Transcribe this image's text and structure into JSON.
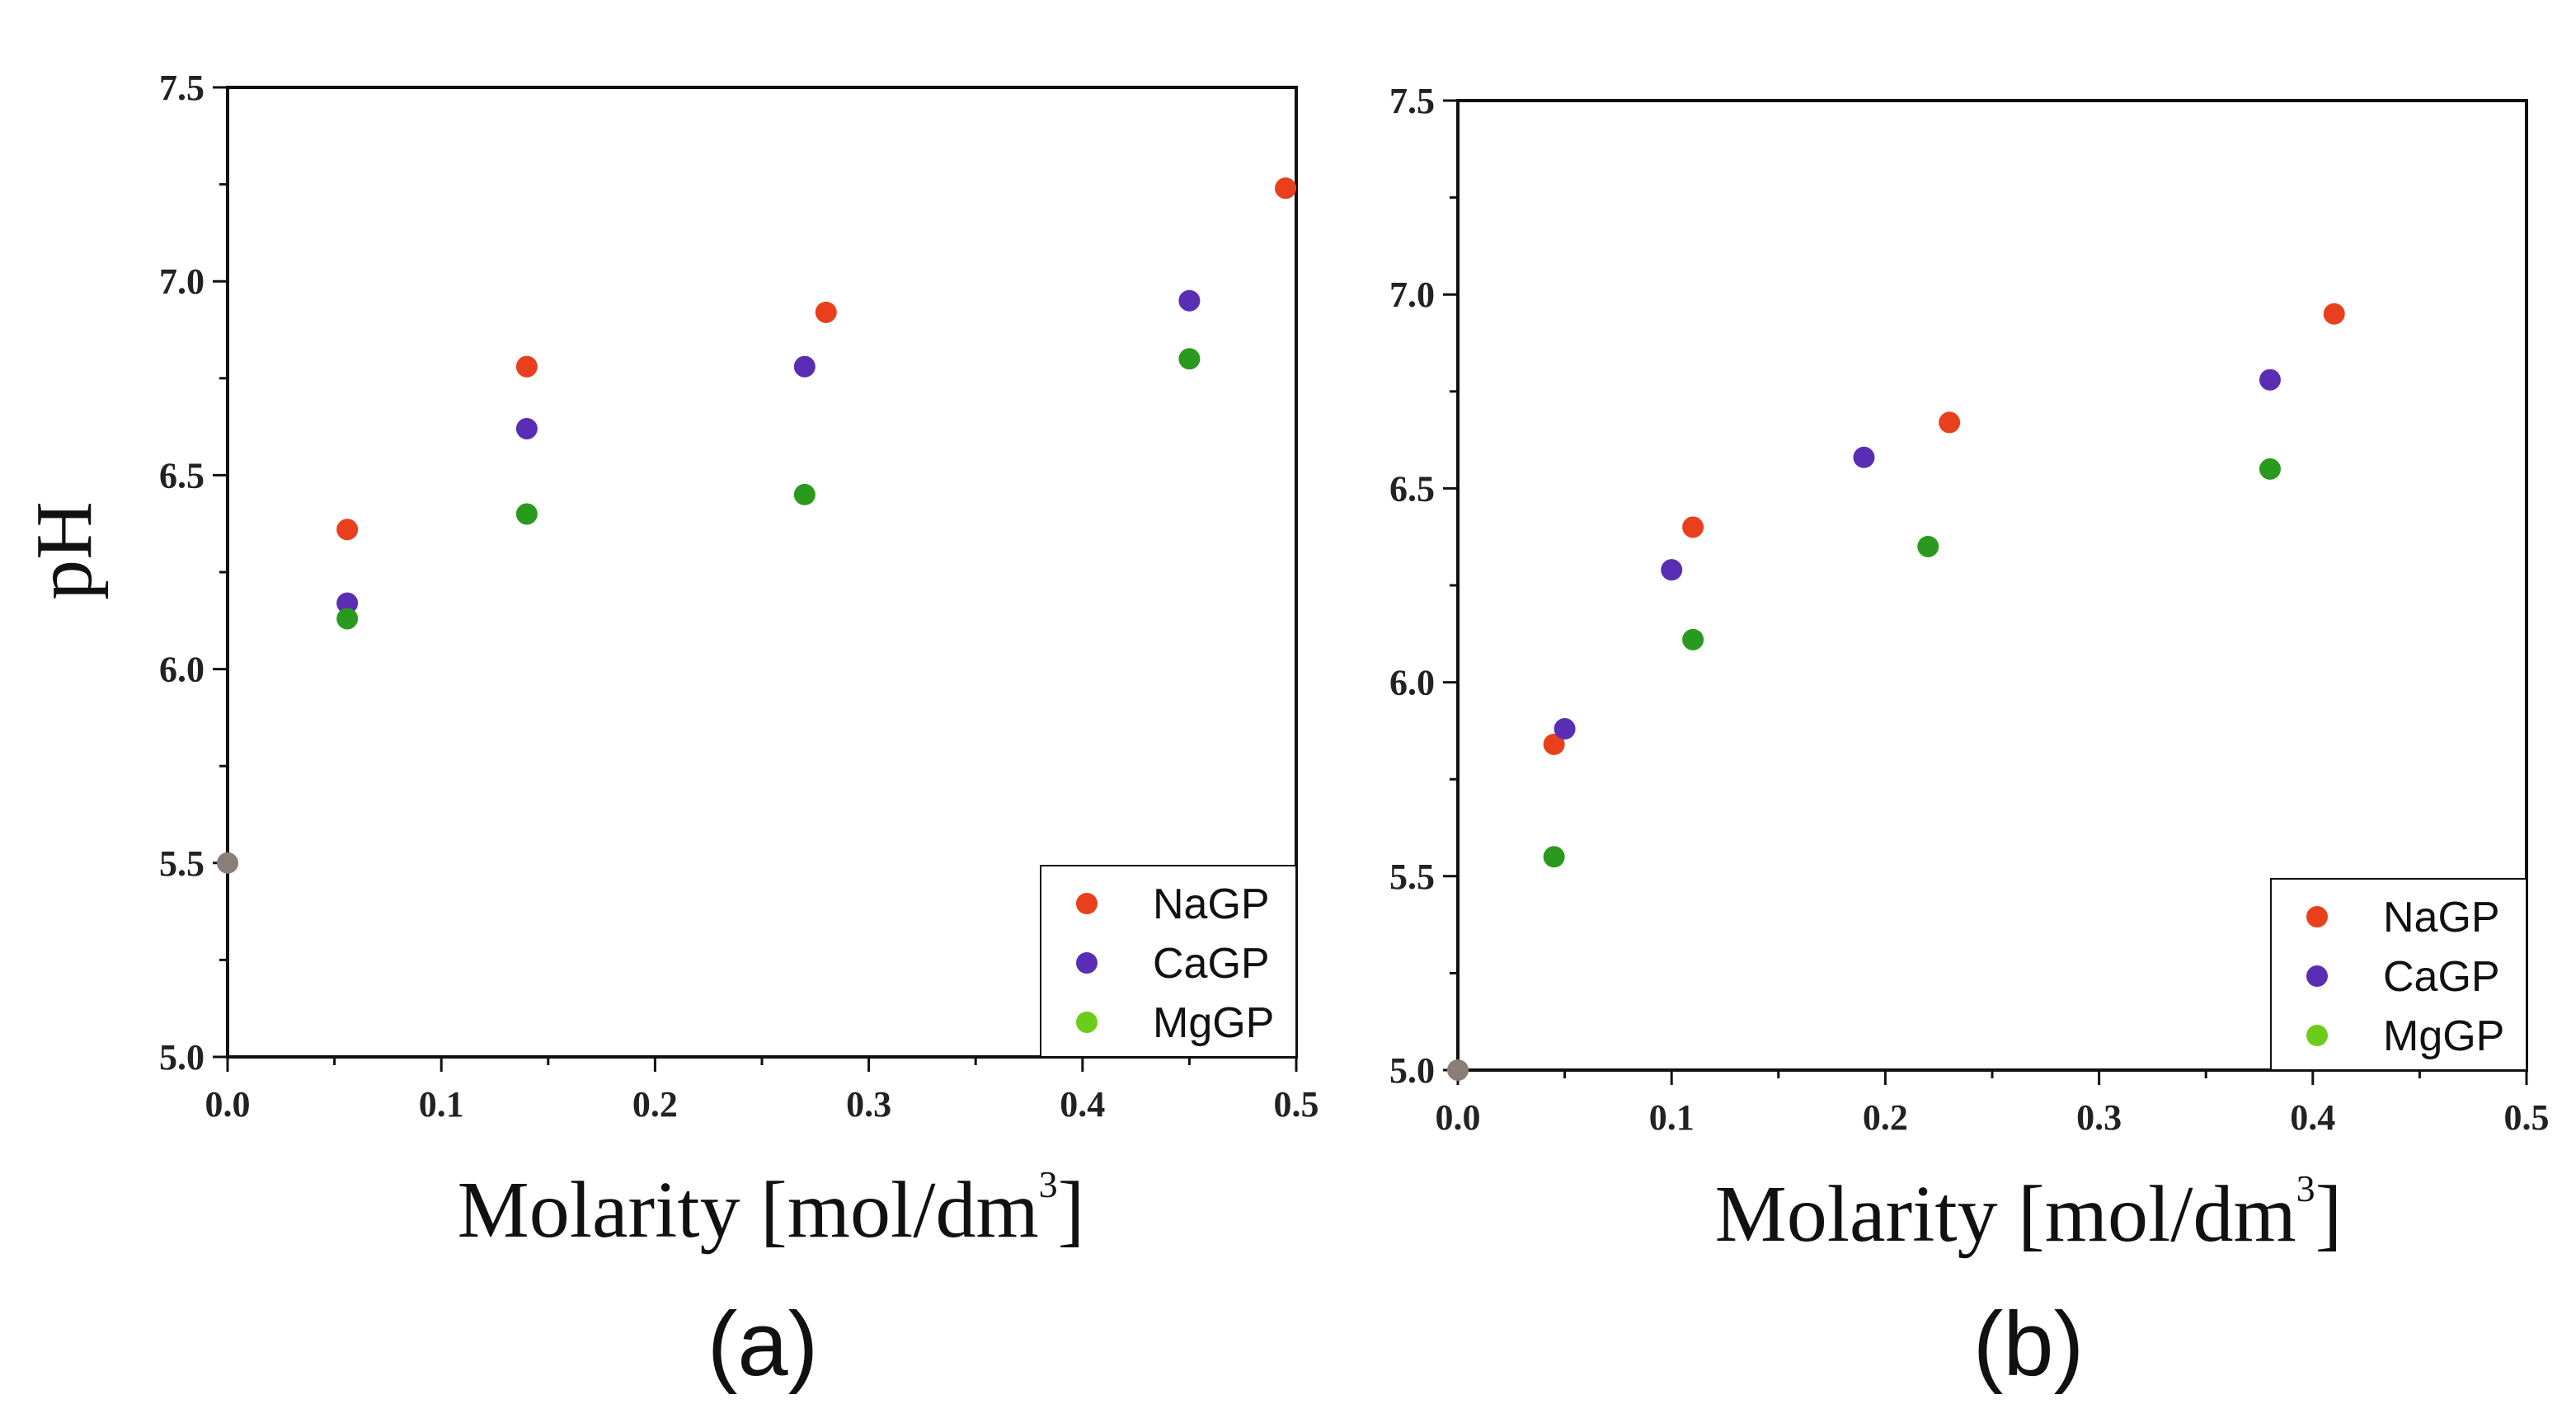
{
  "colors": {
    "NaGP": "#e8401c",
    "CaGP": "#5a2eb4",
    "MgGP": "#2a9a1e",
    "MgGP_legend": "#6ccc1a",
    "origin": "#8a7f78",
    "axis": "#111111"
  },
  "chart_data": [
    {
      "type": "scatter",
      "panel_label": "(a)",
      "xlabel": "Molarity [mol/dm",
      "xlabel_sup": "3",
      "xlabel_close": "]",
      "ylabel": "pH",
      "xlim": [
        0.0,
        0.5
      ],
      "ylim": [
        5.0,
        7.5
      ],
      "xticks": [
        "0.0",
        "0.1",
        "0.2",
        "0.3",
        "0.4",
        "0.5"
      ],
      "yticks": [
        "5.0",
        "5.5",
        "6.0",
        "6.5",
        "7.0",
        "7.5"
      ],
      "legend_position": "bottom-right",
      "origin_point": {
        "x": 0.0,
        "y": 5.5
      },
      "series": [
        {
          "name": "NaGP",
          "x": [
            0.056,
            0.14,
            0.28,
            0.495
          ],
          "y": [
            6.36,
            6.78,
            6.92,
            7.24
          ]
        },
        {
          "name": "CaGP",
          "x": [
            0.056,
            0.14,
            0.27,
            0.45
          ],
          "y": [
            6.17,
            6.62,
            6.78,
            6.95
          ]
        },
        {
          "name": "MgGP",
          "x": [
            0.056,
            0.14,
            0.27,
            0.45
          ],
          "y": [
            6.13,
            6.4,
            6.45,
            6.8
          ]
        }
      ]
    },
    {
      "type": "scatter",
      "panel_label": "(b)",
      "xlabel": "Molarity [mol/dm",
      "xlabel_sup": "3",
      "xlabel_close": "]",
      "ylabel": "",
      "xlim": [
        0.0,
        0.5
      ],
      "ylim": [
        5.0,
        7.5
      ],
      "xticks": [
        "0.0",
        "0.1",
        "0.2",
        "0.3",
        "0.4",
        "0.5"
      ],
      "yticks": [
        "5.0",
        "5.5",
        "6.0",
        "6.5",
        "7.0",
        "7.5"
      ],
      "legend_position": "bottom-right",
      "origin_point": {
        "x": 0.0,
        "y": 5.0
      },
      "series": [
        {
          "name": "NaGP",
          "x": [
            0.045,
            0.11,
            0.23,
            0.41
          ],
          "y": [
            5.84,
            6.4,
            6.67,
            6.95
          ]
        },
        {
          "name": "CaGP",
          "x": [
            0.05,
            0.1,
            0.19,
            0.38
          ],
          "y": [
            5.88,
            6.29,
            6.58,
            6.78
          ]
        },
        {
          "name": "MgGP",
          "x": [
            0.045,
            0.11,
            0.22,
            0.38
          ],
          "y": [
            5.55,
            6.11,
            6.35,
            6.55
          ]
        }
      ]
    }
  ]
}
